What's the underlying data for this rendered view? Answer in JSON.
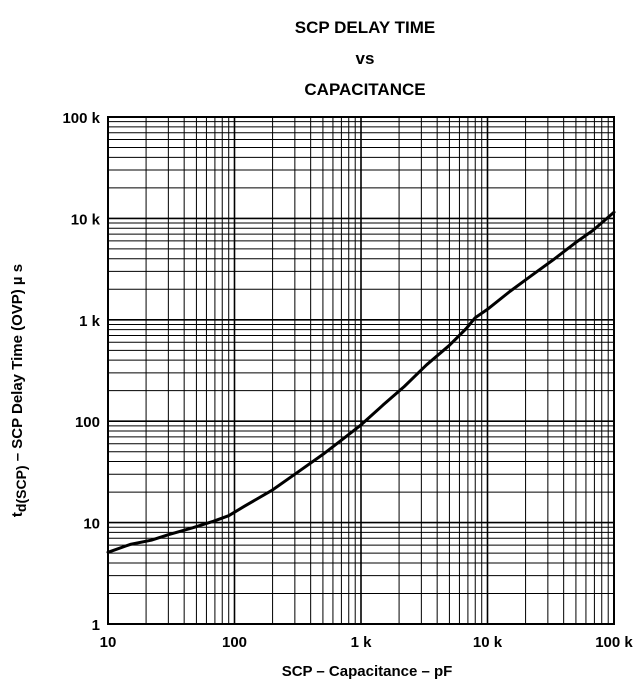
{
  "title": {
    "line1": "SCP DELAY TIME",
    "line2": "vs",
    "line3": "CAPACITANCE"
  },
  "chart_data": {
    "type": "line",
    "title": "SCP DELAY TIME vs CAPACITANCE",
    "xlabel": "SCP – Capacitance – pF",
    "ylabel": "td(SCP) – SCP Delay Time (OVP) µs",
    "ylabel_parts": {
      "prefix": "t",
      "subscript": "d(SCP)",
      "rest": " – SCP Delay Time  (OVP)  µ s"
    },
    "x_scale": "log",
    "y_scale": "log",
    "xlim": [
      10,
      100000
    ],
    "ylim": [
      1,
      100000
    ],
    "grid": true,
    "x_ticks": [
      {
        "value": 10,
        "label": "10"
      },
      {
        "value": 100,
        "label": "100"
      },
      {
        "value": 1000,
        "label": "1 k"
      },
      {
        "value": 10000,
        "label": "10 k"
      },
      {
        "value": 100000,
        "label": "100 k"
      }
    ],
    "y_ticks": [
      {
        "value": 1,
        "label": "1"
      },
      {
        "value": 10,
        "label": "10"
      },
      {
        "value": 100,
        "label": "100"
      },
      {
        "value": 1000,
        "label": "1 k"
      },
      {
        "value": 10000,
        "label": "10 k"
      },
      {
        "value": 100000,
        "label": "100 k"
      }
    ],
    "series": [
      {
        "x": [
          10,
          15,
          22,
          30,
          47,
          68,
          90,
          120,
          200,
          300,
          500,
          700,
          1000,
          1500,
          2200,
          3300,
          5000,
          6800,
          8000,
          10000,
          15000,
          22000,
          33000,
          50000,
          68000,
          100000
        ],
        "y": [
          5.1,
          6.1,
          6.7,
          7.6,
          8.9,
          10.3,
          11.7,
          14.5,
          21,
          30,
          47,
          65,
          92,
          145,
          220,
          360,
          560,
          820,
          1050,
          1270,
          1900,
          2700,
          3900,
          5800,
          7600,
          11500
        ]
      }
    ]
  }
}
